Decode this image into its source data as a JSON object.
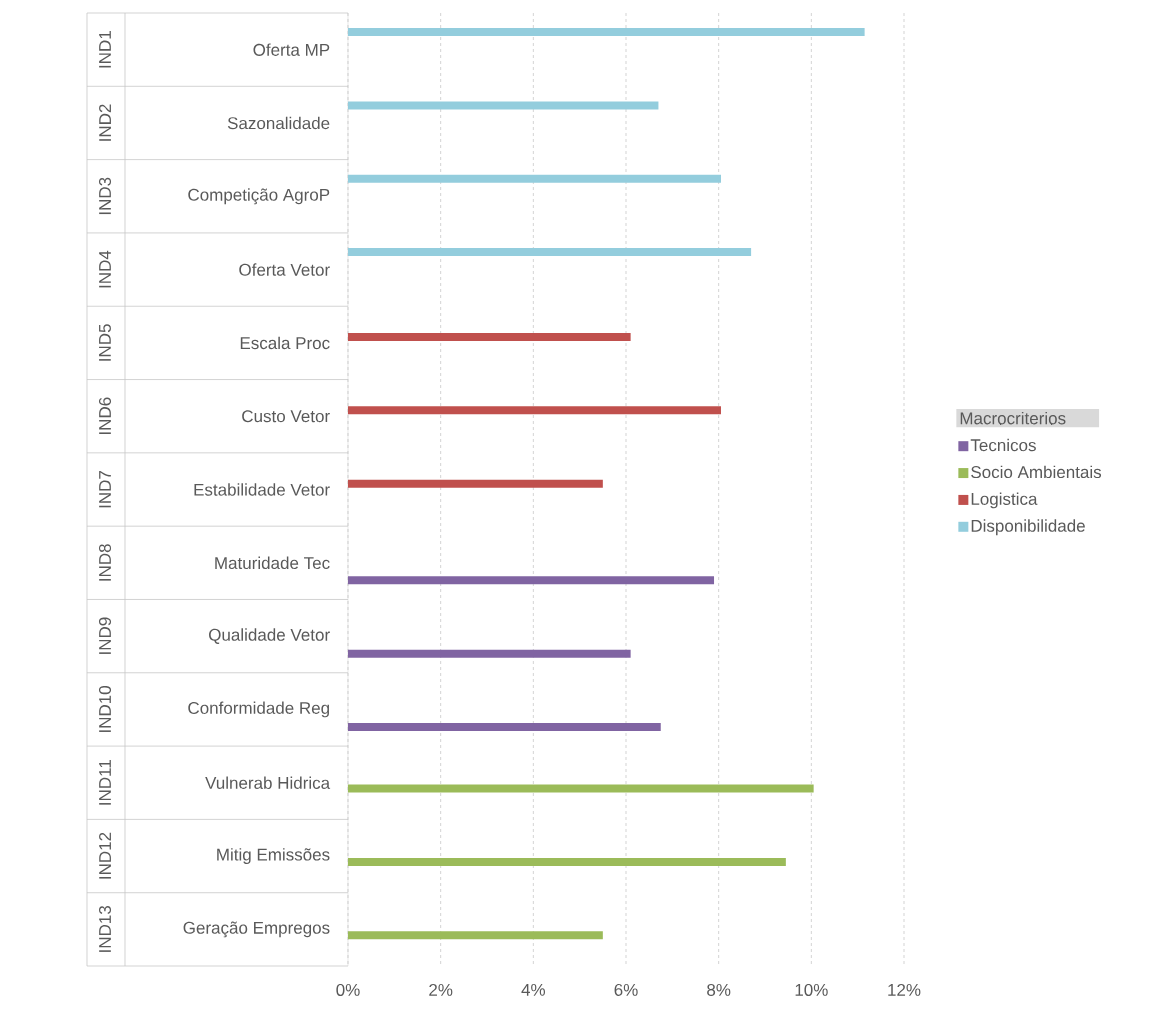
{
  "chart_data": {
    "type": "bar",
    "orientation": "horizontal",
    "categories": [
      "Oferta MP",
      "Sazonalidade",
      "Competição AgroP",
      "Oferta Vetor",
      "Escala Proc",
      "Custo Vetor",
      "Estabilidade Vetor",
      "Maturidade Tec",
      "Qualidade Vetor",
      "Conformidade Reg",
      "Vulnerab Hidrica",
      "Mitig Emissões",
      "Geração Empregos"
    ],
    "annotations": [
      "IND1",
      "IND2",
      "IND3",
      "IND4",
      "IND5",
      "IND6",
      "IND7",
      "IND8",
      "IND9",
      "IND10",
      "IND11",
      "IND12",
      "IND13"
    ],
    "series": [
      {
        "name": "Tecnicos",
        "color": "#8064a2",
        "values": [
          null,
          null,
          null,
          null,
          null,
          null,
          null,
          7.9,
          6.1,
          6.75,
          null,
          null,
          null
        ]
      },
      {
        "name": "Socio Ambientais",
        "color": "#9bbb59",
        "values": [
          null,
          null,
          null,
          null,
          null,
          null,
          null,
          null,
          null,
          null,
          10.05,
          9.45,
          5.5
        ]
      },
      {
        "name": "Logistica",
        "color": "#c0504d",
        "values": [
          null,
          null,
          null,
          null,
          6.1,
          8.05,
          5.5,
          null,
          null,
          null,
          null,
          null,
          null
        ]
      },
      {
        "name": "Disponibilidade",
        "color": "#93cddd",
        "values": [
          11.15,
          6.7,
          8.05,
          8.7,
          null,
          null,
          null,
          null,
          null,
          null,
          null,
          null,
          null
        ]
      }
    ],
    "legend_title": "Macrocriterios",
    "legend": "right",
    "xlim": [
      0,
      12
    ],
    "xticks": [
      {
        "value": 0,
        "label": "0%"
      },
      {
        "value": 2,
        "label": "2%"
      },
      {
        "value": 4,
        "label": "4%"
      },
      {
        "value": 6,
        "label": "6%"
      },
      {
        "value": 8,
        "label": "8%"
      },
      {
        "value": 10,
        "label": "10%"
      },
      {
        "value": 12,
        "label": "12%"
      }
    ],
    "grid": "x"
  }
}
